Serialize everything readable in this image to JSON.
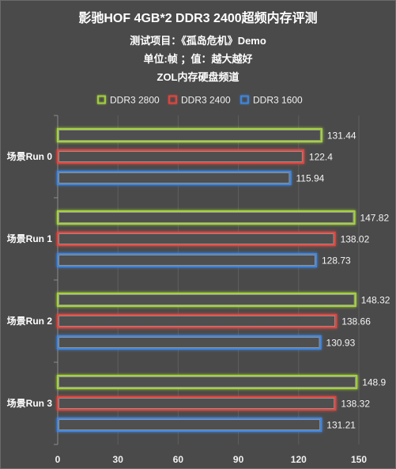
{
  "chart_data": {
    "type": "bar",
    "orientation": "horizontal",
    "title": "影驰HOF 4GB*2 DDR3 2400超频内存评测",
    "subtitle": [
      "测试项目：《孤岛危机》Demo",
      "单位:帧 ；值：越大越好",
      "ZOL内存硬盘频道"
    ],
    "categories": [
      "场景Run 0",
      "场景Run 1",
      "场景Run 2",
      "场景Run 3"
    ],
    "series": [
      {
        "name": "DDR3 2800",
        "color": "#a4d23c",
        "values": [
          131.44,
          147.82,
          148.32,
          148.9
        ]
      },
      {
        "name": "DDR3 2400",
        "color": "#e0463f",
        "values": [
          122.4,
          138.02,
          138.66,
          138.32
        ]
      },
      {
        "name": "DDR3 1600",
        "color": "#3f86e0",
        "values": [
          115.94,
          128.73,
          130.93,
          131.21
        ]
      }
    ],
    "xlim": [
      0,
      150
    ],
    "xticks": [
      0,
      30,
      60,
      90,
      120,
      150
    ],
    "grid": true,
    "legend": "top-center",
    "background_color": "#4a4a4a"
  }
}
